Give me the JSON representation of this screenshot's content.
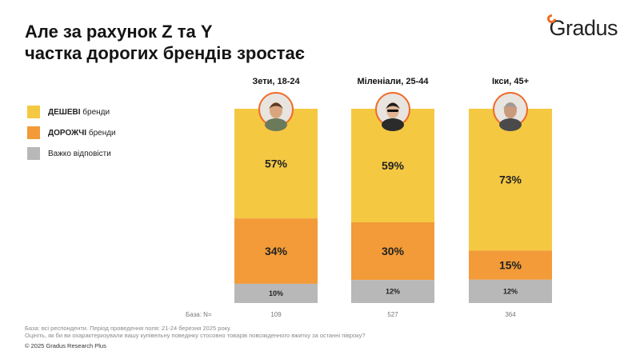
{
  "title": {
    "line1": "Але за рахунок Z та Y",
    "line2": "частка дорогих брендів зростає"
  },
  "brand": "Gradus",
  "legend": [
    {
      "bold": "ДЕШЕВІ",
      "rest": " бренди",
      "color": "#f5c842"
    },
    {
      "bold": "ДОРОЖЧІ",
      "rest": " бренди",
      "color": "#f29b38"
    },
    {
      "bold": "",
      "rest": "Важко відповісти",
      "color": "#b8b8b8"
    }
  ],
  "chart_data": {
    "type": "bar",
    "stacked": true,
    "categories": [
      "Зети, 18-24",
      "Міленіали, 25-44",
      "Ікси, 45+"
    ],
    "series": [
      {
        "name": "ДЕШЕВІ бренди",
        "values": [
          57,
          59,
          73
        ],
        "color": "#f5c842"
      },
      {
        "name": "ДОРОЖЧІ бренди",
        "values": [
          34,
          30,
          15
        ],
        "color": "#f29b38"
      },
      {
        "name": "Важко відповісти",
        "values": [
          10,
          12,
          12
        ],
        "color": "#b8b8b8"
      }
    ],
    "data_labels": [
      [
        "57%",
        "34%",
        "10%"
      ],
      [
        "59%",
        "30%",
        "12%"
      ],
      [
        "73%",
        "15%",
        "12%"
      ]
    ],
    "base_label": "База: N=",
    "base_n": [
      "109",
      "527",
      "364"
    ]
  },
  "avatars": [
    {
      "icon": "young-man-avatar-icon"
    },
    {
      "icon": "woman-sunglasses-avatar-icon"
    },
    {
      "icon": "older-man-avatar-icon"
    }
  ],
  "footnote": {
    "line1": "База: всі респонденти. Період проведення поля: 21-24 березня 2025 року.",
    "line2": "Оцініть, як би ви охарактеризували вашу купівельну поведінку стосовно товарів повсякденного вжитку за останні півроку?"
  },
  "copyright": "© 2025 Gradus Research Plus"
}
